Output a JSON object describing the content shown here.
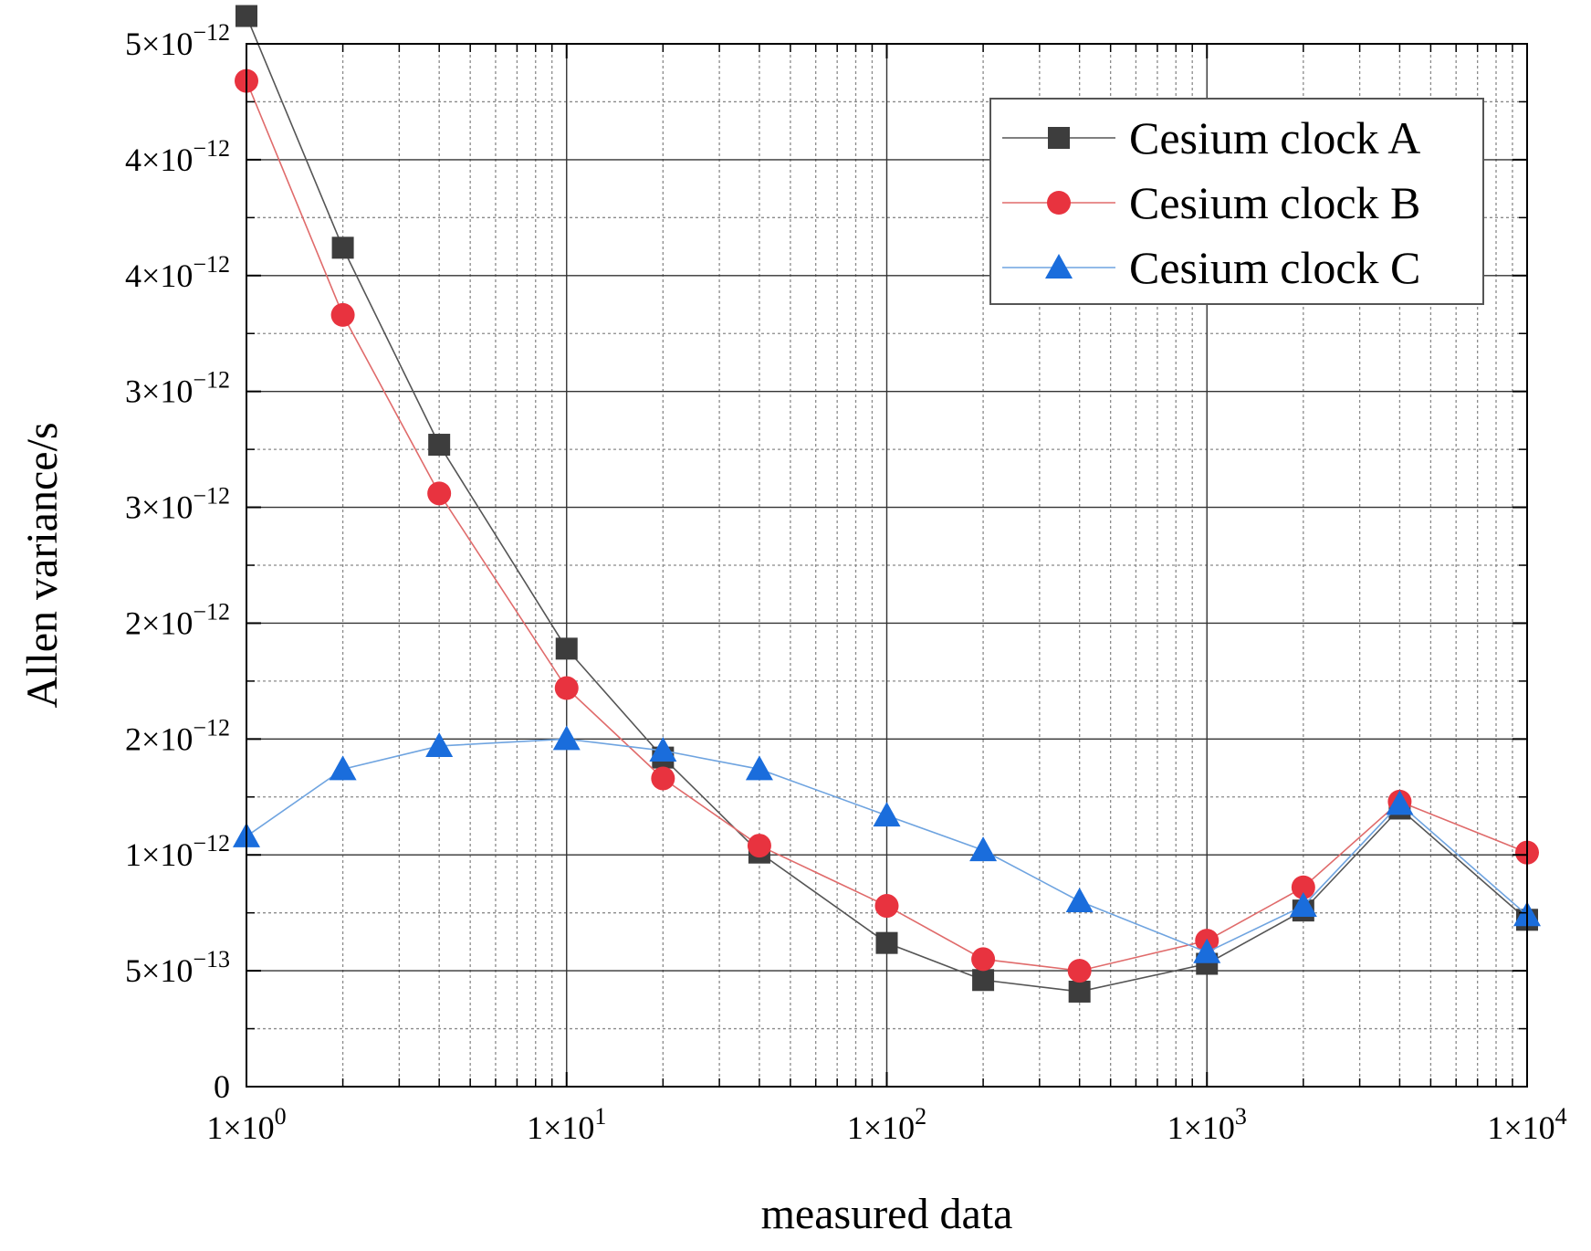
{
  "chart_data": {
    "type": "line",
    "x_scale": "log",
    "x": [
      1,
      2,
      4,
      10,
      20,
      40,
      100,
      200,
      400,
      1000,
      2000,
      4000,
      10000
    ],
    "series": [
      {
        "name": "Cesium clock A",
        "color": "#3d3d3d",
        "line_color": "#555555",
        "marker": "square",
        "values": [
          4.62e-12,
          3.62e-12,
          2.77e-12,
          1.89e-12,
          1.42e-12,
          1.01e-12,
          6.2e-13,
          4.6e-13,
          4.1e-13,
          5.3e-13,
          7.6e-13,
          1.2e-12,
          7.2e-13
        ]
      },
      {
        "name": "Cesium clock B",
        "color": "#e8333f",
        "line_color": "#e06b6b",
        "marker": "circle",
        "values": [
          4.34e-12,
          3.33e-12,
          2.56e-12,
          1.72e-12,
          1.33e-12,
          1.04e-12,
          7.8e-13,
          5.5e-13,
          5e-13,
          6.3e-13,
          8.6e-13,
          1.23e-12,
          1.01e-12
        ]
      },
      {
        "name": "Cesium clock C",
        "color": "#1a6ddc",
        "line_color": "#6fa4e0",
        "marker": "triangle",
        "values": [
          1.08e-12,
          1.37e-12,
          1.47e-12,
          1.5e-12,
          1.45e-12,
          1.37e-12,
          1.17e-12,
          1.02e-12,
          8e-13,
          5.8e-13,
          7.8e-13,
          1.22e-12,
          7.4e-13
        ]
      }
    ],
    "xlabel": "measured data",
    "ylabel": "Allen variance/s",
    "xlim": [
      1,
      10000
    ],
    "ylim": [
      0,
      4.5e-12
    ],
    "x_tick_values": [
      1,
      10,
      100,
      1000,
      10000
    ],
    "y_tick_values": [
      0,
      5e-13,
      1e-12,
      1.5e-12,
      2e-12,
      2.5e-12,
      3e-12,
      3.5e-12,
      4e-12,
      4.5e-12
    ],
    "x_tick_labels": [
      {
        "base": "1×10",
        "exp": "0"
      },
      {
        "base": "1×10",
        "exp": "1"
      },
      {
        "base": "1×10",
        "exp": "2"
      },
      {
        "base": "1×10",
        "exp": "3"
      },
      {
        "base": "1×10",
        "exp": "4"
      }
    ],
    "y_tick_labels": [
      {
        "base": "0",
        "exp": ""
      },
      {
        "base": "5×10",
        "exp": "−13"
      },
      {
        "base": "1×10",
        "exp": "−12"
      },
      {
        "base": "2×10",
        "exp": "−12"
      },
      {
        "base": "2×10",
        "exp": "−12"
      },
      {
        "base": "3×10",
        "exp": "−12"
      },
      {
        "base": "3×10",
        "exp": "−12"
      },
      {
        "base": "4×10",
        "exp": "−12"
      },
      {
        "base": "4×10",
        "exp": "−12"
      },
      {
        "base": "5×10",
        "exp": "−12"
      }
    ],
    "grid": true,
    "legend_position": "top-right"
  }
}
